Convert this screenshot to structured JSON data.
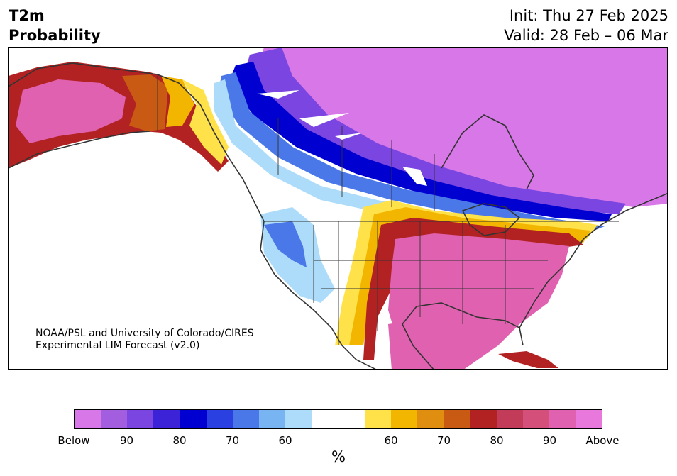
{
  "header": {
    "title_line1": "T2m",
    "title_line2": "Probability",
    "init": "Init: Thu 27 Feb 2025",
    "valid": "Valid: 28 Feb – 06 Mar"
  },
  "credit": {
    "line1": "NOAA/PSL and University of Colorado/CIRES",
    "line2": "Experimental LIM Forecast (v2.0)"
  },
  "colorbar": {
    "colors": [
      "#d877e8",
      "#a35ee0",
      "#7a45e0",
      "#3d23d8",
      "#0000d0",
      "#2a40e0",
      "#4a78e8",
      "#78b4f2",
      "#addcfa",
      "#ffffff",
      "#ffffff",
      "#ffe24a",
      "#f2b600",
      "#e08e10",
      "#c85a14",
      "#b22222",
      "#c23c5a",
      "#d4507a",
      "#e061b0",
      "#e878dc"
    ],
    "tick_labels": [
      "Below",
      "90",
      "80",
      "70",
      "60",
      "60",
      "70",
      "80",
      "90",
      "Above"
    ],
    "unit": "%"
  },
  "map_colors": {
    "below_deep": "#d877e8",
    "below_high": "#7a45e0",
    "below_mid": "#0000d0",
    "below_low": "#4a78e8",
    "below_faint": "#addcfa",
    "above_faint": "#ffe24a",
    "above_low": "#f2b600",
    "above_mid": "#c85a14",
    "above_high": "#b22222",
    "above_deep": "#e061b0",
    "coast": "#333333"
  }
}
